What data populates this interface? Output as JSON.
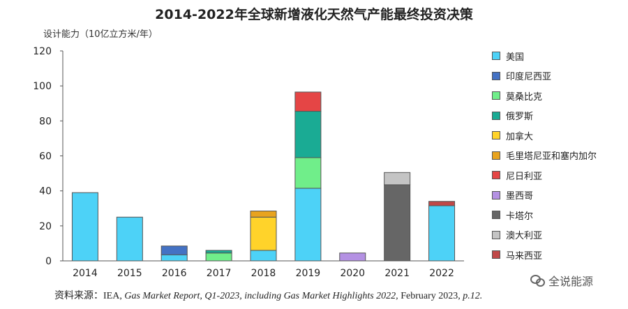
{
  "chart_data": {
    "type": "bar",
    "stacked": true,
    "title": "2014-2022年全球新增液化天然气产能最终投资决策",
    "ylabel": "设计能力（10亿立方米/年）",
    "xlabel": "",
    "ylim": [
      0,
      120
    ],
    "yticks": [
      0,
      20,
      40,
      60,
      80,
      100,
      120
    ],
    "grid": false,
    "legend_position": "right",
    "categories": [
      "2014",
      "2015",
      "2016",
      "2017",
      "2018",
      "2019",
      "2020",
      "2021",
      "2022"
    ],
    "series": [
      {
        "name": "美国",
        "color": "#4dd2f7",
        "values": [
          39,
          25,
          3.5,
          0,
          6,
          41.5,
          0,
          0,
          31.5
        ]
      },
      {
        "name": "印度尼西亚",
        "color": "#4472c4",
        "values": [
          0,
          0,
          5,
          0,
          0,
          0,
          0,
          0,
          0
        ]
      },
      {
        "name": "莫桑比克",
        "color": "#70ee8a",
        "values": [
          0,
          0,
          0,
          4.5,
          0,
          17.5,
          0,
          0,
          0
        ]
      },
      {
        "name": "俄罗斯",
        "color": "#1aab94",
        "values": [
          0,
          0,
          0,
          1.5,
          0,
          26.5,
          0,
          0,
          0
        ]
      },
      {
        "name": "加拿大",
        "color": "#ffd32a",
        "values": [
          0,
          0,
          0,
          0,
          19,
          0,
          0,
          0,
          0
        ]
      },
      {
        "name": "毛里塔尼亚和塞内加尔",
        "color": "#e8a31e",
        "values": [
          0,
          0,
          0,
          0,
          3.5,
          0,
          0,
          0,
          0
        ]
      },
      {
        "name": "尼日利亚",
        "color": "#e54545",
        "values": [
          0,
          0,
          0,
          0,
          0,
          11,
          0,
          0,
          0
        ]
      },
      {
        "name": "墨西哥",
        "color": "#b491e3",
        "values": [
          0,
          0,
          0,
          0,
          0,
          0,
          4.5,
          0,
          0
        ]
      },
      {
        "name": "卡塔尔",
        "color": "#666666",
        "values": [
          0,
          0,
          0,
          0,
          0,
          0,
          0,
          43.5,
          0
        ]
      },
      {
        "name": "澳大利亚",
        "color": "#c4c4c4",
        "values": [
          0,
          0,
          0,
          0,
          0,
          0,
          0,
          7,
          0
        ]
      },
      {
        "name": "马来西亚",
        "color": "#c04848",
        "values": [
          0,
          0,
          0,
          0,
          0,
          0,
          0,
          0,
          2.5
        ]
      }
    ]
  },
  "source": {
    "prefix": "资料来源：IEA, ",
    "italic": "Gas Market Report, Q1-2023, including Gas Market Highlights 2022,",
    "suffix": " February 2023, ",
    "page": "p.12."
  },
  "watermark": {
    "text": "全说能源",
    "icon": "wechat-icon"
  }
}
